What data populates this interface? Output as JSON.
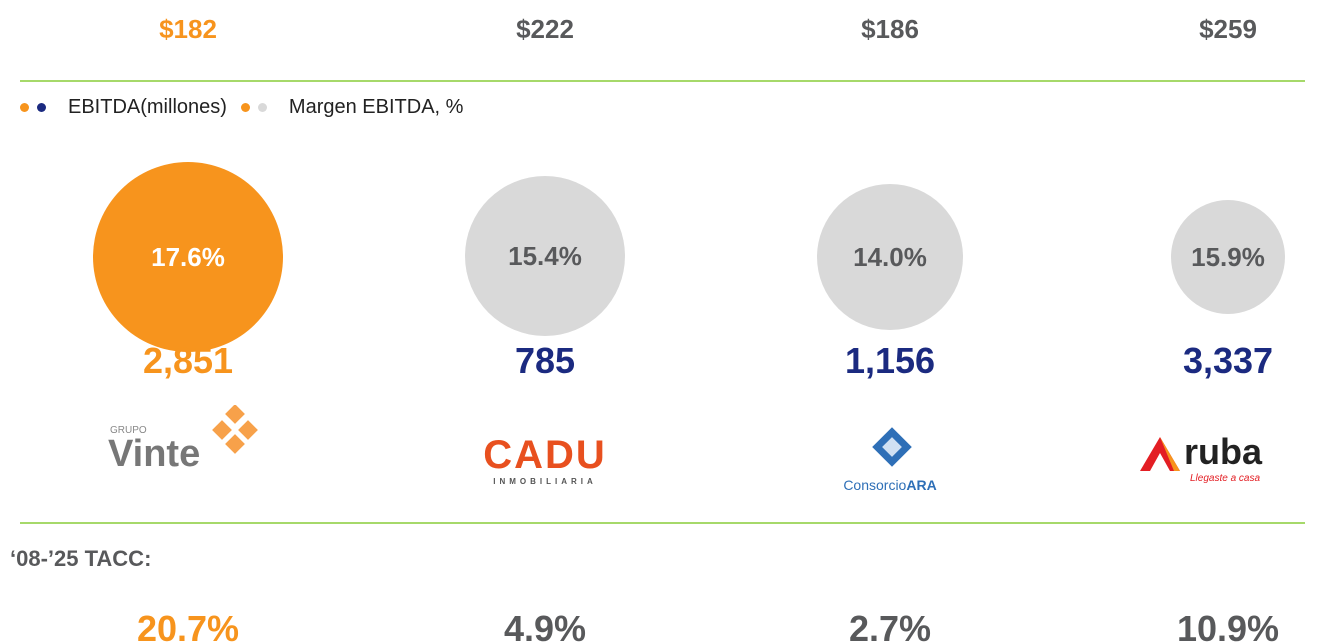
{
  "legend": {
    "ebitda": "EBITDA(millones)",
    "margin": "Margen EBITDA, %"
  },
  "tacc_label": "‘08-’25 TACC:",
  "columns": [
    {
      "price": "$182",
      "margin": "17.6%",
      "ebitda": "2,851",
      "logo": [
        "GRUPO",
        "Vinte"
      ],
      "tacc": "20.7%"
    },
    {
      "price": "$222",
      "margin": "15.4%",
      "ebitda": "785",
      "logo": [
        "CADU",
        "INMOBILIARIA"
      ],
      "tacc": "4.9%"
    },
    {
      "price": "$186",
      "margin": "14.0%",
      "ebitda": "1,156",
      "logo": [
        "Consorcio",
        "ARA"
      ],
      "tacc": "2.7%"
    },
    {
      "price": "$259",
      "margin": "15.9%",
      "ebitda": "3,337",
      "logo": [
        "ruba",
        "Llegaste a casa"
      ],
      "tacc": "10.9%"
    }
  ]
}
